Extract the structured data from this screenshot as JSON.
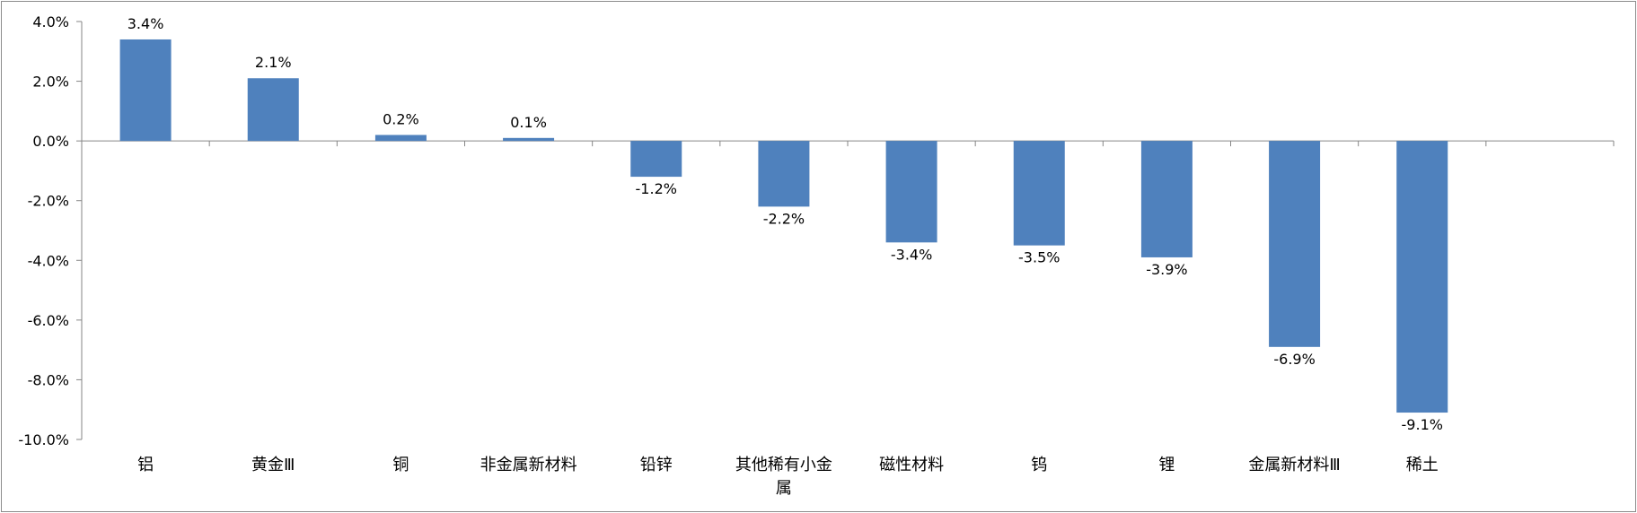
{
  "chart_data": {
    "type": "bar",
    "categories": [
      [
        "铝"
      ],
      [
        "黄金Ⅲ"
      ],
      [
        "铜"
      ],
      [
        "非金属新材料"
      ],
      [
        "铅锌"
      ],
      [
        "其他稀有小金",
        "属"
      ],
      [
        "磁性材料"
      ],
      [
        "钨"
      ],
      [
        "锂"
      ],
      [
        "金属新材料Ⅲ"
      ],
      [
        "稀土"
      ],
      [
        ""
      ]
    ],
    "values": [
      3.4,
      2.1,
      0.2,
      0.1,
      -1.2,
      -2.2,
      -3.4,
      -3.5,
      -3.9,
      -6.9,
      -9.1,
      null
    ],
    "data_labels": [
      "3.4%",
      "2.1%",
      "0.2%",
      "0.1%",
      "-1.2%",
      "-2.2%",
      "-3.4%",
      "-3.5%",
      "-3.9%",
      "-6.9%",
      "-9.1%",
      ""
    ],
    "y_ticks": [
      {
        "value": 4,
        "label": "4.0%"
      },
      {
        "value": 2,
        "label": "2.0%"
      },
      {
        "value": 0,
        "label": "0.0%"
      },
      {
        "value": -2,
        "label": "-2.0%"
      },
      {
        "value": -4,
        "label": "-4.0%"
      },
      {
        "value": -6,
        "label": "-6.0%"
      },
      {
        "value": -8,
        "label": "-8.0%"
      },
      {
        "value": -10,
        "label": "-10.0%"
      }
    ],
    "ylim": [
      -10,
      4
    ],
    "title": "",
    "xlabel": "",
    "ylabel": "",
    "grid": false,
    "bar_color": "#4F81BD",
    "axis_color": "#868686"
  }
}
